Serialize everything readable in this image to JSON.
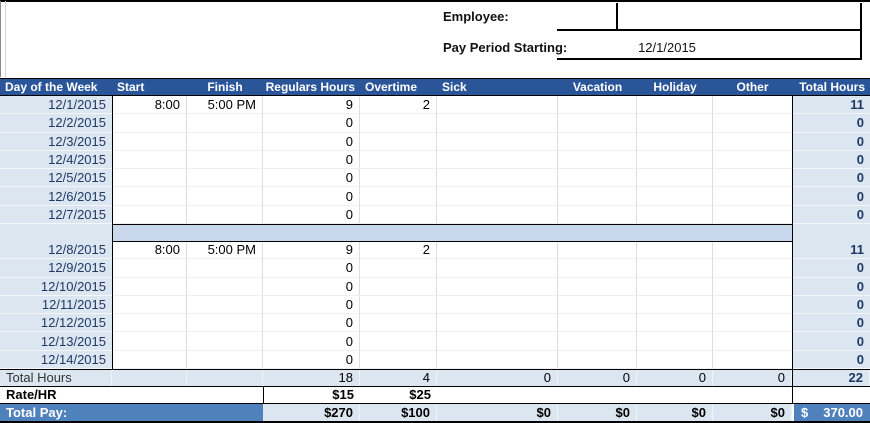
{
  "form": {
    "employee_label": "Employee:",
    "employee_value": "",
    "pay_period_label": "Pay Period Starting:",
    "pay_period_value": "12/1/2015"
  },
  "colors": {
    "header_bg": "#2a5699",
    "band_bg": "#dce6f1",
    "separator_bg": "#c9d7ec",
    "total_pay_bg": "#4f81bd"
  },
  "table": {
    "headers": {
      "date": "Day of the Week",
      "start": "Start",
      "finish": "Finish",
      "regular": "Regulars Hours",
      "overtime": "Overtime",
      "sick": "Sick",
      "vacation": "Vacation",
      "holiday": "Holiday",
      "other": "Other",
      "total": "Total Hours"
    },
    "week1": [
      {
        "date": "12/1/2015",
        "start": "8:00",
        "finish": "5:00 PM",
        "regular": "9",
        "overtime": "2",
        "sick": "",
        "vacation": "",
        "holiday": "",
        "other": "",
        "total": "11"
      },
      {
        "date": "12/2/2015",
        "start": "",
        "finish": "",
        "regular": "0",
        "overtime": "",
        "sick": "",
        "vacation": "",
        "holiday": "",
        "other": "",
        "total": "0"
      },
      {
        "date": "12/3/2015",
        "start": "",
        "finish": "",
        "regular": "0",
        "overtime": "",
        "sick": "",
        "vacation": "",
        "holiday": "",
        "other": "",
        "total": "0"
      },
      {
        "date": "12/4/2015",
        "start": "",
        "finish": "",
        "regular": "0",
        "overtime": "",
        "sick": "",
        "vacation": "",
        "holiday": "",
        "other": "",
        "total": "0"
      },
      {
        "date": "12/5/2015",
        "start": "",
        "finish": "",
        "regular": "0",
        "overtime": "",
        "sick": "",
        "vacation": "",
        "holiday": "",
        "other": "",
        "total": "0"
      },
      {
        "date": "12/6/2015",
        "start": "",
        "finish": "",
        "regular": "0",
        "overtime": "",
        "sick": "",
        "vacation": "",
        "holiday": "",
        "other": "",
        "total": "0"
      },
      {
        "date": "12/7/2015",
        "start": "",
        "finish": "",
        "regular": "0",
        "overtime": "",
        "sick": "",
        "vacation": "",
        "holiday": "",
        "other": "",
        "total": "0"
      }
    ],
    "week2": [
      {
        "date": "12/8/2015",
        "start": "8:00",
        "finish": "5:00 PM",
        "regular": "9",
        "overtime": "2",
        "sick": "",
        "vacation": "",
        "holiday": "",
        "other": "",
        "total": "11"
      },
      {
        "date": "12/9/2015",
        "start": "",
        "finish": "",
        "regular": "0",
        "overtime": "",
        "sick": "",
        "vacation": "",
        "holiday": "",
        "other": "",
        "total": "0"
      },
      {
        "date": "12/10/2015",
        "start": "",
        "finish": "",
        "regular": "0",
        "overtime": "",
        "sick": "",
        "vacation": "",
        "holiday": "",
        "other": "",
        "total": "0"
      },
      {
        "date": "12/11/2015",
        "start": "",
        "finish": "",
        "regular": "0",
        "overtime": "",
        "sick": "",
        "vacation": "",
        "holiday": "",
        "other": "",
        "total": "0"
      },
      {
        "date": "12/12/2015",
        "start": "",
        "finish": "",
        "regular": "0",
        "overtime": "",
        "sick": "",
        "vacation": "",
        "holiday": "",
        "other": "",
        "total": "0"
      },
      {
        "date": "12/13/2015",
        "start": "",
        "finish": "",
        "regular": "0",
        "overtime": "",
        "sick": "",
        "vacation": "",
        "holiday": "",
        "other": "",
        "total": "0"
      },
      {
        "date": "12/14/2015",
        "start": "",
        "finish": "",
        "regular": "0",
        "overtime": "",
        "sick": "",
        "vacation": "",
        "holiday": "",
        "other": "",
        "total": "0"
      }
    ],
    "totals": {
      "label": "Total Hours",
      "start": "",
      "finish": "",
      "regular": "18",
      "overtime": "4",
      "sick": "0",
      "vacation": "0",
      "holiday": "0",
      "other": "0",
      "total": "22"
    },
    "rate": {
      "label": "Rate/HR",
      "regular": "$15",
      "overtime": "$25"
    },
    "pay": {
      "label": "Total Pay:",
      "regular": "$270",
      "overtime": "$100",
      "sick": "$0",
      "vacation": "$0",
      "holiday": "$0",
      "other": "$0",
      "total_sign": "$",
      "total_value": "370.00"
    }
  }
}
